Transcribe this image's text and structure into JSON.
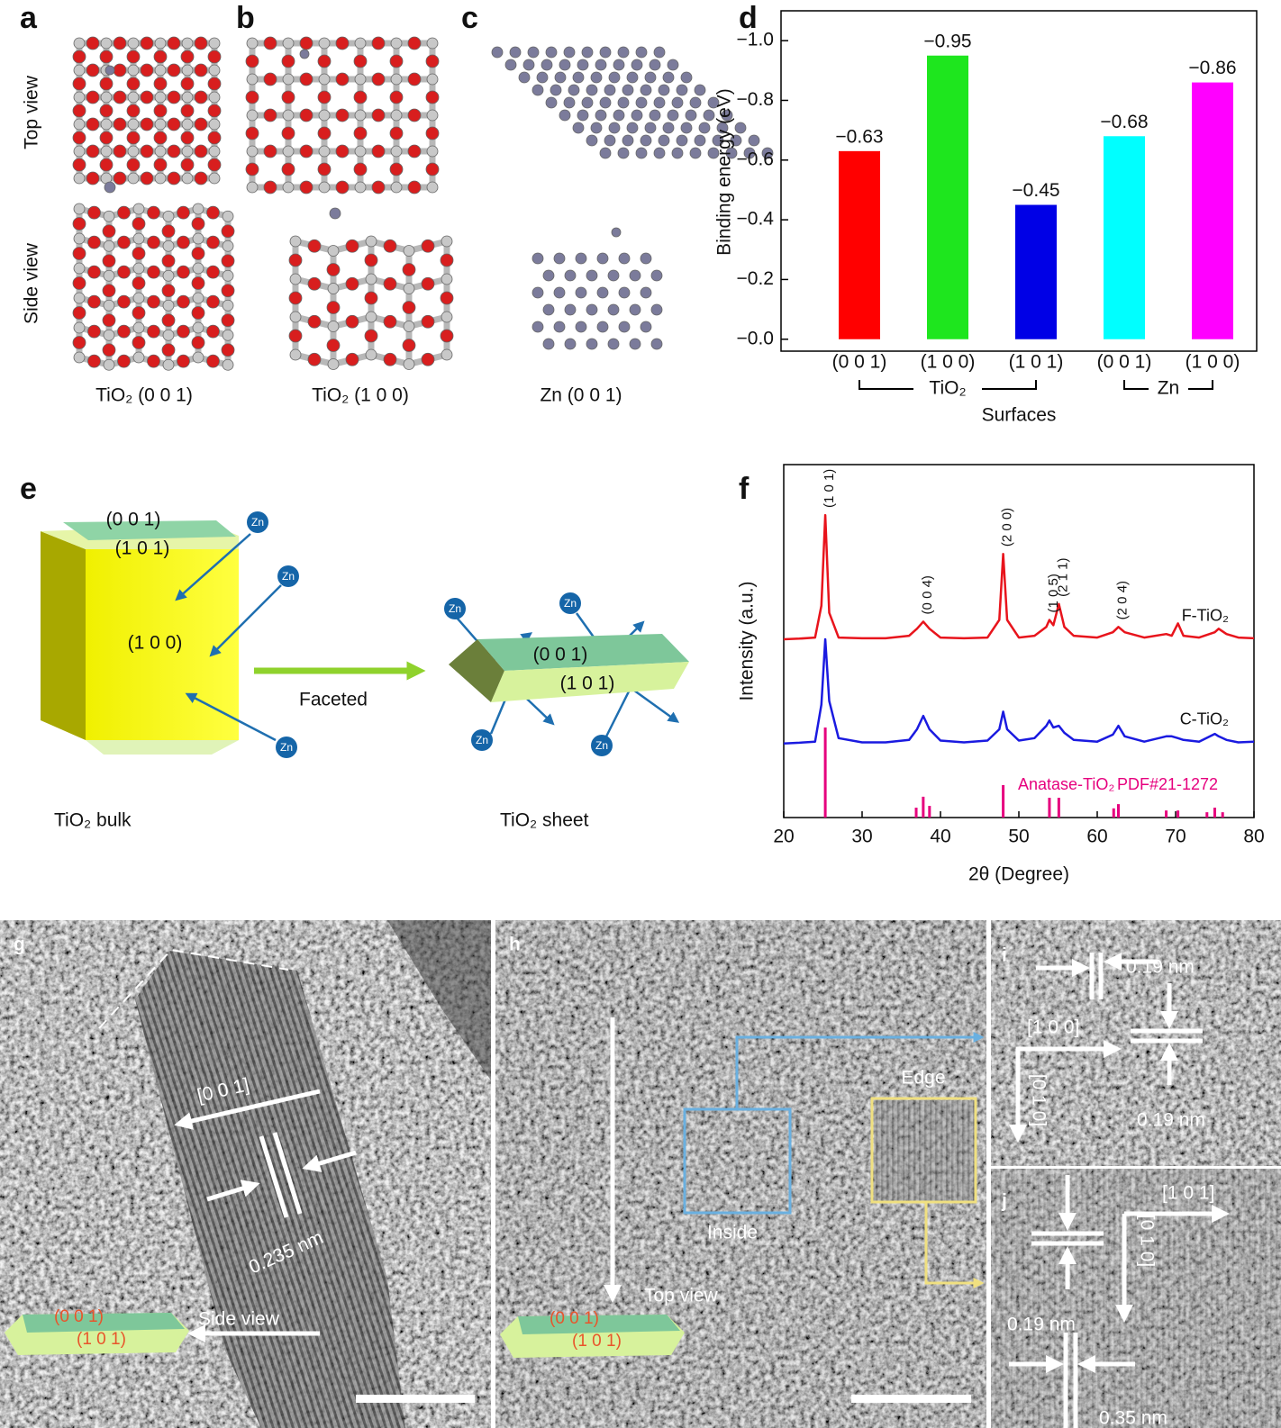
{
  "panel_labels": [
    "a",
    "b",
    "c",
    "d",
    "e",
    "f",
    "g",
    "h",
    "i",
    "j"
  ],
  "structures": {
    "views": [
      "Top view",
      "Side view"
    ],
    "captions": [
      "TiO₂ (0 0 1)",
      "TiO₂ (1 0 0)",
      "Zn (0 0 1)"
    ]
  },
  "schematic": {
    "bulk_facets": [
      "(0 0 1)",
      "(1 0 1)",
      "(1 0 0)"
    ],
    "sheet_facets": [
      "(0 0 1)",
      "(1 0 1)"
    ],
    "ion": "Zn",
    "arrow_label": "Faceted",
    "captions": [
      "TiO₂ bulk",
      "TiO₂ sheet"
    ]
  },
  "tem": {
    "g": {
      "direction": "[0 0 1]",
      "spacing": "0.235 nm",
      "view": "Side view",
      "facets": [
        "(0 0 1)",
        "(1 0 1)"
      ]
    },
    "h": {
      "regions": [
        "Edge",
        "Inside"
      ],
      "view": "Top view",
      "facets": [
        "(0 0 1)",
        "(1 0 1)"
      ]
    },
    "i": {
      "directions": [
        "[1 0 0]",
        "[0 1 0]"
      ],
      "spacings": [
        "0.19 nm",
        "0.19 nm"
      ]
    },
    "j": {
      "directions": [
        "[1 0 1]",
        "[0 1 0]"
      ],
      "spacings": [
        "0.19 nm",
        "0.35 nm"
      ]
    }
  },
  "chart_data": [
    {
      "type": "bar",
      "categories": [
        "(0 0 1)",
        "(1 0 0)",
        "(1 0 1)",
        "(0 0 1)",
        "(1 0 0)"
      ],
      "values": [
        -0.63,
        -0.95,
        -0.45,
        -0.68,
        -0.86
      ],
      "value_labels": [
        "−0.63",
        "−0.95",
        "−0.45",
        "−0.68",
        "−0.86"
      ],
      "colors": [
        "#ff0000",
        "#1ee61e",
        "#0000e6",
        "#00ffff",
        "#ff00ff"
      ],
      "groups": [
        {
          "label": "TiO₂",
          "size": 3
        },
        {
          "label": "Zn",
          "size": 2
        }
      ],
      "ylim": [
        0.04,
        -1.1
      ],
      "yticks": [
        {
          "value": 0,
          "label": "−0.0"
        },
        {
          "value": -0.2,
          "label": "−0.2"
        },
        {
          "value": -0.4,
          "label": "−0.4"
        },
        {
          "value": -0.6,
          "label": "−0.6"
        },
        {
          "value": -0.8,
          "label": "−0.8"
        },
        {
          "value": -1.0,
          "label": "−1.0"
        }
      ],
      "xlabel": "Surfaces",
      "ylabel": "Binding energy (eV)"
    },
    {
      "type": "line",
      "x": [
        20,
        22,
        24,
        24.8,
        25.3,
        25.8,
        27,
        30,
        33,
        36,
        37,
        37.8,
        38.6,
        40,
        43,
        46,
        47.5,
        48.0,
        48.5,
        50,
        52,
        53.5,
        53.9,
        54.4,
        55.1,
        55.8,
        57,
        60,
        62,
        62.7,
        63.5,
        66,
        68.8,
        69.5,
        70.3,
        71,
        73,
        75,
        75.5,
        76.5,
        78,
        80
      ],
      "series": [
        {
          "name": "F-TiO₂",
          "color": "#e8141c",
          "values": [
            50.5,
            50.7,
            51,
            60,
            85.7,
            58,
            51,
            50.8,
            50.8,
            51.5,
            53.5,
            55.5,
            53.5,
            51,
            50.8,
            51,
            56,
            74.7,
            56,
            51,
            51.5,
            54,
            56,
            54.5,
            60.5,
            54,
            51.5,
            51,
            52.5,
            54,
            52.5,
            51,
            52,
            51.5,
            55,
            51.5,
            51,
            52.5,
            53.5,
            52,
            51,
            50.8
          ]
        },
        {
          "name": "C-TiO₂",
          "color": "#1a1ae0",
          "values": [
            21,
            21.2,
            21.5,
            32,
            50.5,
            33,
            22.5,
            21.3,
            21.3,
            22,
            25,
            28.8,
            25,
            21.8,
            21.3,
            21.8,
            25,
            30,
            25,
            21.8,
            22.5,
            26,
            27.5,
            25.5,
            26,
            24,
            22,
            21.5,
            23.5,
            26,
            23,
            21.5,
            23,
            23,
            22.5,
            22,
            21.5,
            23.7,
            23,
            22,
            21.3,
            21.5
          ]
        }
      ],
      "reference": {
        "name": "Anatase-TiO₂",
        "label": "PDF#21-1272",
        "color": "#e6007e",
        "x": [
          25.3,
          36.9,
          37.8,
          38.6,
          48.0,
          53.9,
          55.1,
          62.1,
          62.7,
          68.8,
          70.3,
          74.0,
          75.0,
          76.0
        ],
        "values": [
          25.5,
          2.8,
          5.9,
          3.3,
          9.2,
          5.6,
          5.6,
          2.6,
          3.8,
          2,
          2,
          1.5,
          2.8,
          1.5
        ]
      },
      "annotations": [
        {
          "text": "(1 0 1)",
          "x": 25.3
        },
        {
          "text": "(0 0 4)",
          "x": 37.8
        },
        {
          "text": "(2 0 0)",
          "x": 48.0
        },
        {
          "text": "(1 0 5)",
          "x": 53.9
        },
        {
          "text": "(2 1 1)",
          "x": 55.1
        },
        {
          "text": "(2 0 4)",
          "x": 62.7
        }
      ],
      "xlim": [
        20,
        80
      ],
      "xticks": [
        20,
        30,
        40,
        50,
        60,
        70,
        80
      ],
      "ylim": [
        0,
        100
      ],
      "xlabel": "2θ (Degree)",
      "ylabel": "Intensity (a.u.)"
    }
  ]
}
